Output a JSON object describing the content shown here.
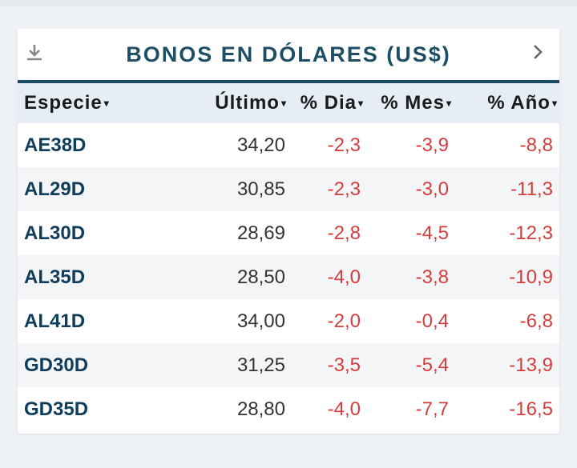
{
  "card": {
    "title": "BONOS EN DÓLARES (US$)",
    "download_icon": "download-icon",
    "next_icon": "chevron-right-icon"
  },
  "table": {
    "headers": [
      {
        "label": "Especie",
        "arrow": "▾"
      },
      {
        "label": "Último",
        "arrow": "▾"
      },
      {
        "label": "% Dia",
        "arrow": "▾"
      },
      {
        "label": "% Mes",
        "arrow": "▾"
      },
      {
        "label": "% Año",
        "arrow": "▾"
      }
    ],
    "rows": [
      {
        "especie": "AE38D",
        "ultimo": "34,20",
        "dia": "-2,3",
        "mes": "-3,9",
        "ano": "-8,8"
      },
      {
        "especie": "AL29D",
        "ultimo": "30,85",
        "dia": "-2,3",
        "mes": "-3,0",
        "ano": "-11,3"
      },
      {
        "especie": "AL30D",
        "ultimo": "28,69",
        "dia": "-2,8",
        "mes": "-4,5",
        "ano": "-12,3"
      },
      {
        "especie": "AL35D",
        "ultimo": "28,50",
        "dia": "-4,0",
        "mes": "-3,8",
        "ano": "-10,9"
      },
      {
        "especie": "AL41D",
        "ultimo": "34,00",
        "dia": "-2,0",
        "mes": "-0,4",
        "ano": "-6,8"
      },
      {
        "especie": "GD30D",
        "ultimo": "31,25",
        "dia": "-3,5",
        "mes": "-5,4",
        "ano": "-13,9"
      },
      {
        "especie": "GD35D",
        "ultimo": "28,80",
        "dia": "-4,0",
        "mes": "-7,7",
        "ano": "-16,5"
      }
    ]
  },
  "colors": {
    "title": "#1d4e63",
    "rule": "#1b4b62",
    "ticker": "#0f3d5c",
    "negative": "#d43d3d",
    "header_bg": "#e6edf4"
  }
}
